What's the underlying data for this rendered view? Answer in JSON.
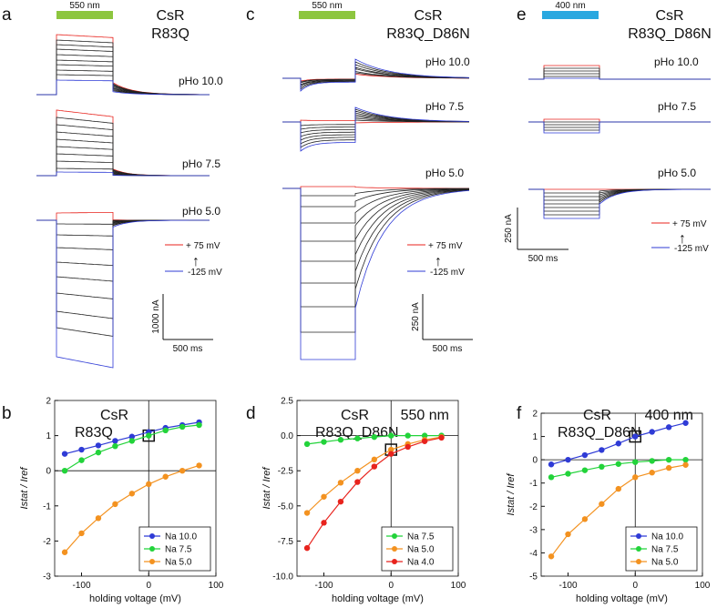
{
  "colors": {
    "green_bar": "#8dc63f",
    "blue_bar": "#29a8e0",
    "red": "#e8231d",
    "blue": "#2f3bd6",
    "green": "#22d33a",
    "orange": "#f39220",
    "black": "#111111"
  },
  "panels": {
    "a": {
      "letter": "a",
      "light": "550 nm",
      "title1": "CsR",
      "title2": "R83Q",
      "ph_labels": [
        "pHo 10.0",
        "pHo 7.5",
        "pHo 5.0"
      ],
      "legend_top": "+ 75 mV",
      "legend_bottom": "-125 mV",
      "scale_y": "1000 nA",
      "scale_x": "500 ms"
    },
    "c": {
      "letter": "c",
      "light": "550 nm",
      "title1": "CsR",
      "title2": "R83Q_D86N",
      "ph_labels": [
        "pHo 10.0",
        "pHo 7.5",
        "pHo 5.0"
      ],
      "legend_top": "+ 75 mV",
      "legend_bottom": "-125 mV",
      "scale_y": "250 nA",
      "scale_x": "500 ms"
    },
    "e": {
      "letter": "e",
      "light": "400 nm",
      "title1": "CsR",
      "title2": "R83Q_D86N",
      "ph_labels": [
        "pHo 10.0",
        "pHo 7.5",
        "pHo 5.0"
      ],
      "legend_top": "+ 75 mV",
      "legend_bottom": "-125 mV",
      "scale_y": "250 nA",
      "scale_x": "500 ms"
    }
  },
  "chart_data": [
    {
      "panel": "b",
      "type": "line",
      "title": "CsR R83Q",
      "xlabel": "holding voltage (mV)",
      "ylabel": "Istat / Iref",
      "xlim": [
        -140,
        100
      ],
      "ylim": [
        -3,
        2
      ],
      "xticks": [
        -100,
        0,
        100
      ],
      "yticks": [
        -3,
        -2,
        -1,
        0,
        1,
        2
      ],
      "legend": "bottom-right",
      "series": [
        {
          "name": "Na 10.0",
          "color": "blue",
          "x": [
            -125,
            -100,
            -75,
            -50,
            -25,
            0,
            25,
            50,
            75
          ],
          "y": [
            0.48,
            0.6,
            0.72,
            0.85,
            0.97,
            1.1,
            1.22,
            1.3,
            1.38
          ]
        },
        {
          "name": "Na 7.5",
          "color": "green",
          "x": [
            -125,
            -100,
            -75,
            -50,
            -25,
            0,
            25,
            50,
            75
          ],
          "y": [
            0.0,
            0.3,
            0.52,
            0.7,
            0.85,
            1.0,
            1.15,
            1.25,
            1.3
          ]
        },
        {
          "name": "Na 5.0",
          "color": "orange",
          "x": [
            -125,
            -100,
            -75,
            -50,
            -25,
            0,
            25,
            50,
            75
          ],
          "y": [
            -2.32,
            -1.78,
            -1.35,
            -0.95,
            -0.65,
            -0.38,
            -0.17,
            0.0,
            0.15
          ]
        }
      ]
    },
    {
      "panel": "d",
      "type": "line",
      "title": "CsR R83Q_D86N",
      "subtitle": "550 nm",
      "xlabel": "holding voltage (mV)",
      "ylabel": "Istat / Iref",
      "xlim": [
        -140,
        100
      ],
      "ylim": [
        -10,
        2.5
      ],
      "xticks": [
        -100,
        0,
        100
      ],
      "yticks": [
        -10.0,
        -7.5,
        -5.0,
        -2.5,
        0.0,
        2.5
      ],
      "legend": "bottom-right",
      "series": [
        {
          "name": "Na 7.5",
          "color": "green",
          "x": [
            -125,
            -100,
            -75,
            -50,
            -25,
            0,
            25,
            50,
            75
          ],
          "y": [
            -0.6,
            -0.45,
            -0.3,
            -0.2,
            -0.1,
            0.0,
            0.0,
            0.0,
            0.0
          ]
        },
        {
          "name": "Na 5.0",
          "color": "orange",
          "x": [
            -125,
            -100,
            -75,
            -50,
            -25,
            0,
            25,
            50,
            75
          ],
          "y": [
            -5.5,
            -4.35,
            -3.35,
            -2.5,
            -1.7,
            -1.0,
            -0.6,
            -0.3,
            -0.1
          ]
        },
        {
          "name": "Na 4.0",
          "color": "red",
          "x": [
            -125,
            -100,
            -75,
            -50,
            -25,
            0,
            25,
            50,
            75
          ],
          "y": [
            -8.0,
            -6.2,
            -4.7,
            -3.3,
            -2.2,
            -1.3,
            -0.8,
            -0.4,
            -0.15
          ]
        }
      ]
    },
    {
      "panel": "f",
      "type": "line",
      "title": "CsR R83Q_D86N",
      "subtitle": "400 nm",
      "xlabel": "holding voltage (mV)",
      "ylabel": "Istat / Iref",
      "xlim": [
        -140,
        100
      ],
      "ylim": [
        -5,
        2
      ],
      "xticks": [
        -100,
        0,
        100
      ],
      "yticks": [
        -5,
        -4,
        -3,
        -2,
        -1,
        0,
        1,
        2
      ],
      "legend": "bottom-right",
      "series": [
        {
          "name": "Na 10.0",
          "color": "blue",
          "x": [
            -125,
            -100,
            -75,
            -50,
            -25,
            0,
            25,
            50,
            75
          ],
          "y": [
            -0.2,
            0.0,
            0.2,
            0.42,
            0.7,
            1.0,
            1.2,
            1.4,
            1.58
          ]
        },
        {
          "name": "Na 7.5",
          "color": "green",
          "x": [
            -125,
            -100,
            -75,
            -50,
            -25,
            0,
            25,
            50,
            75
          ],
          "y": [
            -0.75,
            -0.6,
            -0.45,
            -0.3,
            -0.18,
            -0.1,
            -0.05,
            0.0,
            0.0
          ]
        },
        {
          "name": "Na 5.0",
          "color": "orange",
          "x": [
            -125,
            -100,
            -75,
            -50,
            -25,
            0,
            25,
            50,
            75
          ],
          "y": [
            -4.15,
            -3.2,
            -2.55,
            -1.9,
            -1.25,
            -0.75,
            -0.55,
            -0.35,
            -0.22
          ]
        }
      ]
    }
  ]
}
